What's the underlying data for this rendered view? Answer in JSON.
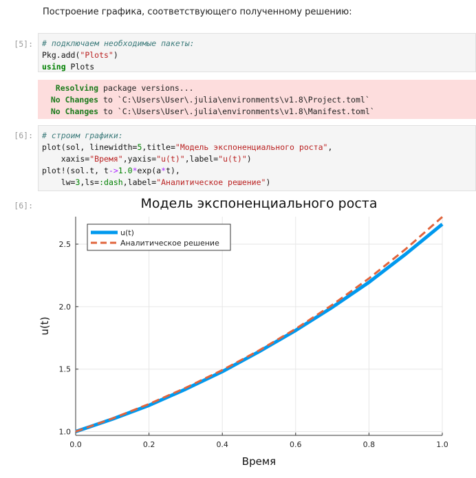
{
  "markdown_text": "Построение графика, соответствующего полученному решению:",
  "cell5": {
    "prompt": "[5]:",
    "line1_comment": "# подключаем необходимые пакеты:",
    "line2_a": "Pkg.add(",
    "line2_str": "\"Plots\"",
    "line2_b": ")",
    "line3_kw": "using",
    "line3_rest": " Plots"
  },
  "cell5_output": {
    "line1_bold": "Resolving",
    "line1_rest": " package versions...",
    "line2_bold": "No Changes",
    "line2_rest": " to `C:\\Users\\User\\.julia\\environments\\v1.8\\Project.toml`",
    "line3_bold": "No Changes",
    "line3_rest": " to `C:\\Users\\User\\.julia\\environments\\v1.8\\Manifest.toml`"
  },
  "cell6": {
    "prompt": "[6]:",
    "comment": "# строим графики:",
    "l2a": "plot(sol, linewidth=",
    "l2b": "5",
    "l2c": ",title=",
    "l2d": "\"Модель экспоненциального роста\"",
    "l2e": ",",
    "l3a": "    xaxis=",
    "l3b": "\"Время\"",
    "l3c": ",yaxis=",
    "l3d": "\"u(t)\"",
    "l3e": ",label=",
    "l3f": "\"u(t)\"",
    "l3g": ")",
    "l4a": "plot!(sol.t, t",
    "l4b": "->",
    "l4c": "1.0",
    "l4d": "*",
    "l4e": "exp(a",
    "l4f": "*",
    "l4g": "t),",
    "l5a": "    lw=",
    "l5b": "3",
    "l5c": ",ls=",
    "l5d": ":dash",
    "l5e": ",label=",
    "l5f": "\"Аналитическое решение\"",
    "l5g": ")"
  },
  "output6_prompt": "[6]:",
  "chart_data": {
    "type": "line",
    "title": "Модель экспоненциального роста",
    "xlabel": "Время",
    "ylabel": "u(t)",
    "xlim": [
      0,
      1
    ],
    "ylim": [
      0.97,
      2.72
    ],
    "xticks": [
      "0.0",
      "0.2",
      "0.4",
      "0.6",
      "0.8",
      "1.0"
    ],
    "yticks": [
      "1.0",
      "1.5",
      "2.0",
      "2.5"
    ],
    "grid": true,
    "legend_position": "top-left",
    "series": [
      {
        "name": "u(t)",
        "color": "#0099ee",
        "style": "solid",
        "x": [
          0,
          0.1,
          0.2,
          0.3,
          0.4,
          0.5,
          0.6,
          0.7,
          0.8,
          0.9,
          1.0
        ],
        "y": [
          1.0,
          1.1,
          1.21,
          1.34,
          1.48,
          1.64,
          1.81,
          1.995,
          2.195,
          2.42,
          2.66
        ]
      },
      {
        "name": "Аналитическое решение",
        "color": "#e0643c",
        "style": "dash",
        "x": [
          0,
          0.1,
          0.2,
          0.3,
          0.4,
          0.5,
          0.6,
          0.7,
          0.8,
          0.9,
          1.0
        ],
        "y": [
          1.0,
          1.105,
          1.221,
          1.35,
          1.492,
          1.649,
          1.822,
          2.014,
          2.226,
          2.46,
          2.718
        ]
      }
    ]
  }
}
